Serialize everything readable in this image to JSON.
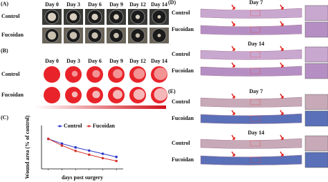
{
  "panel_a": {
    "label": "(A)",
    "days": [
      "Day 0",
      "Day 3",
      "Day 6",
      "Day 9",
      "Day 12",
      "Day 14"
    ],
    "rows": [
      "Control",
      "Fucoidan"
    ]
  },
  "panel_b": {
    "label": "(B)",
    "days": [
      "Day 0",
      "Day 3",
      "Day 6",
      "Day 9",
      "Day 12",
      "Day 14"
    ],
    "rows": [
      "Control",
      "Fucoidan"
    ]
  },
  "chart_data": {
    "type": "line",
    "panel_label": "(C)",
    "x_label": "days post surgery",
    "y_label": "Wound area (% of control)",
    "categories": [
      null,
      null,
      null,
      null,
      null,
      null
    ],
    "series": [
      {
        "name": "Control",
        "color": "#2b35c8",
        "values": [
          95,
          80,
          68,
          58,
          48,
          38
        ]
      },
      {
        "name": "Fucoidan",
        "color": "#d8312c",
        "values": [
          95,
          74,
          57,
          45,
          34,
          25
        ]
      }
    ],
    "ylim": [
      0,
      120
    ]
  },
  "panel_d": {
    "label": "(D)",
    "sections": [
      {
        "title": "Day 7",
        "rows": [
          "Control",
          "Fucoidan"
        ]
      },
      {
        "title": "Day 14",
        "rows": [
          "Control",
          "Fucoidan"
        ]
      }
    ]
  },
  "panel_e": {
    "label": "(E)",
    "sections": [
      {
        "title": "Day 7",
        "rows": [
          "Control",
          "Fucoidan"
        ]
      },
      {
        "title": "Day 14",
        "rows": [
          "Control",
          "Fucoidan"
        ]
      }
    ]
  }
}
